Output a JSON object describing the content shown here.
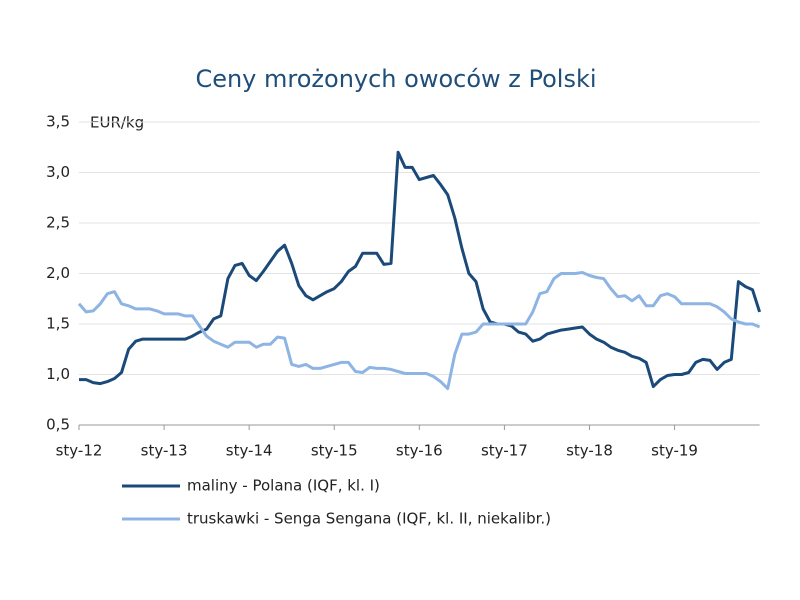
{
  "chart_data": {
    "type": "line",
    "title": "Ceny mrożonych owoców z Polski",
    "y_label": "EUR/kg",
    "categories": [
      "sty-12",
      null,
      null,
      null,
      null,
      null,
      null,
      null,
      null,
      null,
      null,
      null,
      "sty-13",
      null,
      null,
      null,
      null,
      null,
      null,
      null,
      null,
      null,
      null,
      null,
      "sty-14",
      null,
      null,
      null,
      null,
      null,
      null,
      null,
      null,
      null,
      null,
      null,
      "sty-15",
      null,
      null,
      null,
      null,
      null,
      null,
      null,
      null,
      null,
      null,
      null,
      "sty-16",
      null,
      null,
      null,
      null,
      null,
      null,
      null,
      null,
      null,
      null,
      null,
      "sty-17",
      null,
      null,
      null,
      null,
      null,
      null,
      null,
      null,
      null,
      null,
      null,
      "sty-18",
      null,
      null,
      null,
      null,
      null,
      null,
      null,
      null,
      null,
      null,
      null,
      "sty-19",
      null,
      null,
      null,
      null,
      null,
      null,
      null,
      null,
      null,
      null,
      null,
      null
    ],
    "series": [
      {
        "name": "maliny - Polana (IQF, kl. I)",
        "color": "#1b4a7a",
        "values": [
          0.95,
          0.95,
          0.92,
          0.91,
          0.93,
          0.96,
          1.02,
          1.25,
          1.33,
          1.35,
          1.35,
          1.35,
          1.35,
          1.35,
          1.35,
          1.35,
          1.38,
          1.42,
          1.45,
          1.55,
          1.58,
          1.95,
          2.08,
          2.1,
          1.98,
          1.93,
          2.02,
          2.12,
          2.22,
          2.28,
          2.1,
          1.88,
          1.78,
          1.74,
          1.78,
          1.82,
          1.85,
          1.92,
          2.02,
          2.07,
          2.2,
          2.2,
          2.2,
          2.09,
          2.1,
          3.2,
          3.05,
          3.05,
          2.93,
          2.95,
          2.97,
          2.88,
          2.78,
          2.55,
          2.25,
          2.0,
          1.92,
          1.65,
          1.52,
          1.5,
          1.5,
          1.48,
          1.42,
          1.4,
          1.33,
          1.35,
          1.4,
          1.42,
          1.44,
          1.45,
          1.46,
          1.47,
          1.4,
          1.35,
          1.32,
          1.27,
          1.24,
          1.22,
          1.18,
          1.16,
          1.12,
          0.88,
          0.95,
          0.99,
          1.0,
          1.0,
          1.02,
          1.12,
          1.15,
          1.14,
          1.05,
          1.12,
          1.15,
          1.92,
          1.87,
          1.84,
          1.62
        ]
      },
      {
        "name": "truskawki - Senga Sengana (IQF, kl. II, niekalibr.)",
        "color": "#8eb4e3",
        "values": [
          1.7,
          1.62,
          1.63,
          1.7,
          1.8,
          1.82,
          1.7,
          1.68,
          1.65,
          1.65,
          1.65,
          1.63,
          1.6,
          1.6,
          1.6,
          1.58,
          1.58,
          1.48,
          1.38,
          1.33,
          1.3,
          1.27,
          1.32,
          1.32,
          1.32,
          1.27,
          1.3,
          1.3,
          1.37,
          1.36,
          1.1,
          1.08,
          1.1,
          1.06,
          1.06,
          1.08,
          1.1,
          1.12,
          1.12,
          1.03,
          1.02,
          1.07,
          1.06,
          1.06,
          1.05,
          1.03,
          1.01,
          1.01,
          1.01,
          1.01,
          0.98,
          0.93,
          0.86,
          1.2,
          1.4,
          1.4,
          1.42,
          1.5,
          1.5,
          1.5,
          1.5,
          1.5,
          1.5,
          1.5,
          1.62,
          1.8,
          1.82,
          1.95,
          2.0,
          2.0,
          2.0,
          2.01,
          1.98,
          1.96,
          1.95,
          1.85,
          1.77,
          1.78,
          1.73,
          1.78,
          1.68,
          1.68,
          1.78,
          1.8,
          1.77,
          1.7,
          1.7,
          1.7,
          1.7,
          1.7,
          1.67,
          1.62,
          1.55,
          1.52,
          1.5,
          1.5,
          1.47
        ]
      }
    ],
    "ylim": [
      0.5,
      3.5
    ],
    "yticks": [
      {
        "value": 0.5,
        "label": "0,5"
      },
      {
        "value": 1,
        "label": "1,0"
      },
      {
        "value": 1.5,
        "label": "1,5"
      },
      {
        "value": 2,
        "label": "2,0"
      },
      {
        "value": 2.5,
        "label": "2,5"
      },
      {
        "value": 3,
        "label": "3,0"
      },
      {
        "value": 3.5,
        "label": "3,5"
      }
    ],
    "grid": true
  }
}
